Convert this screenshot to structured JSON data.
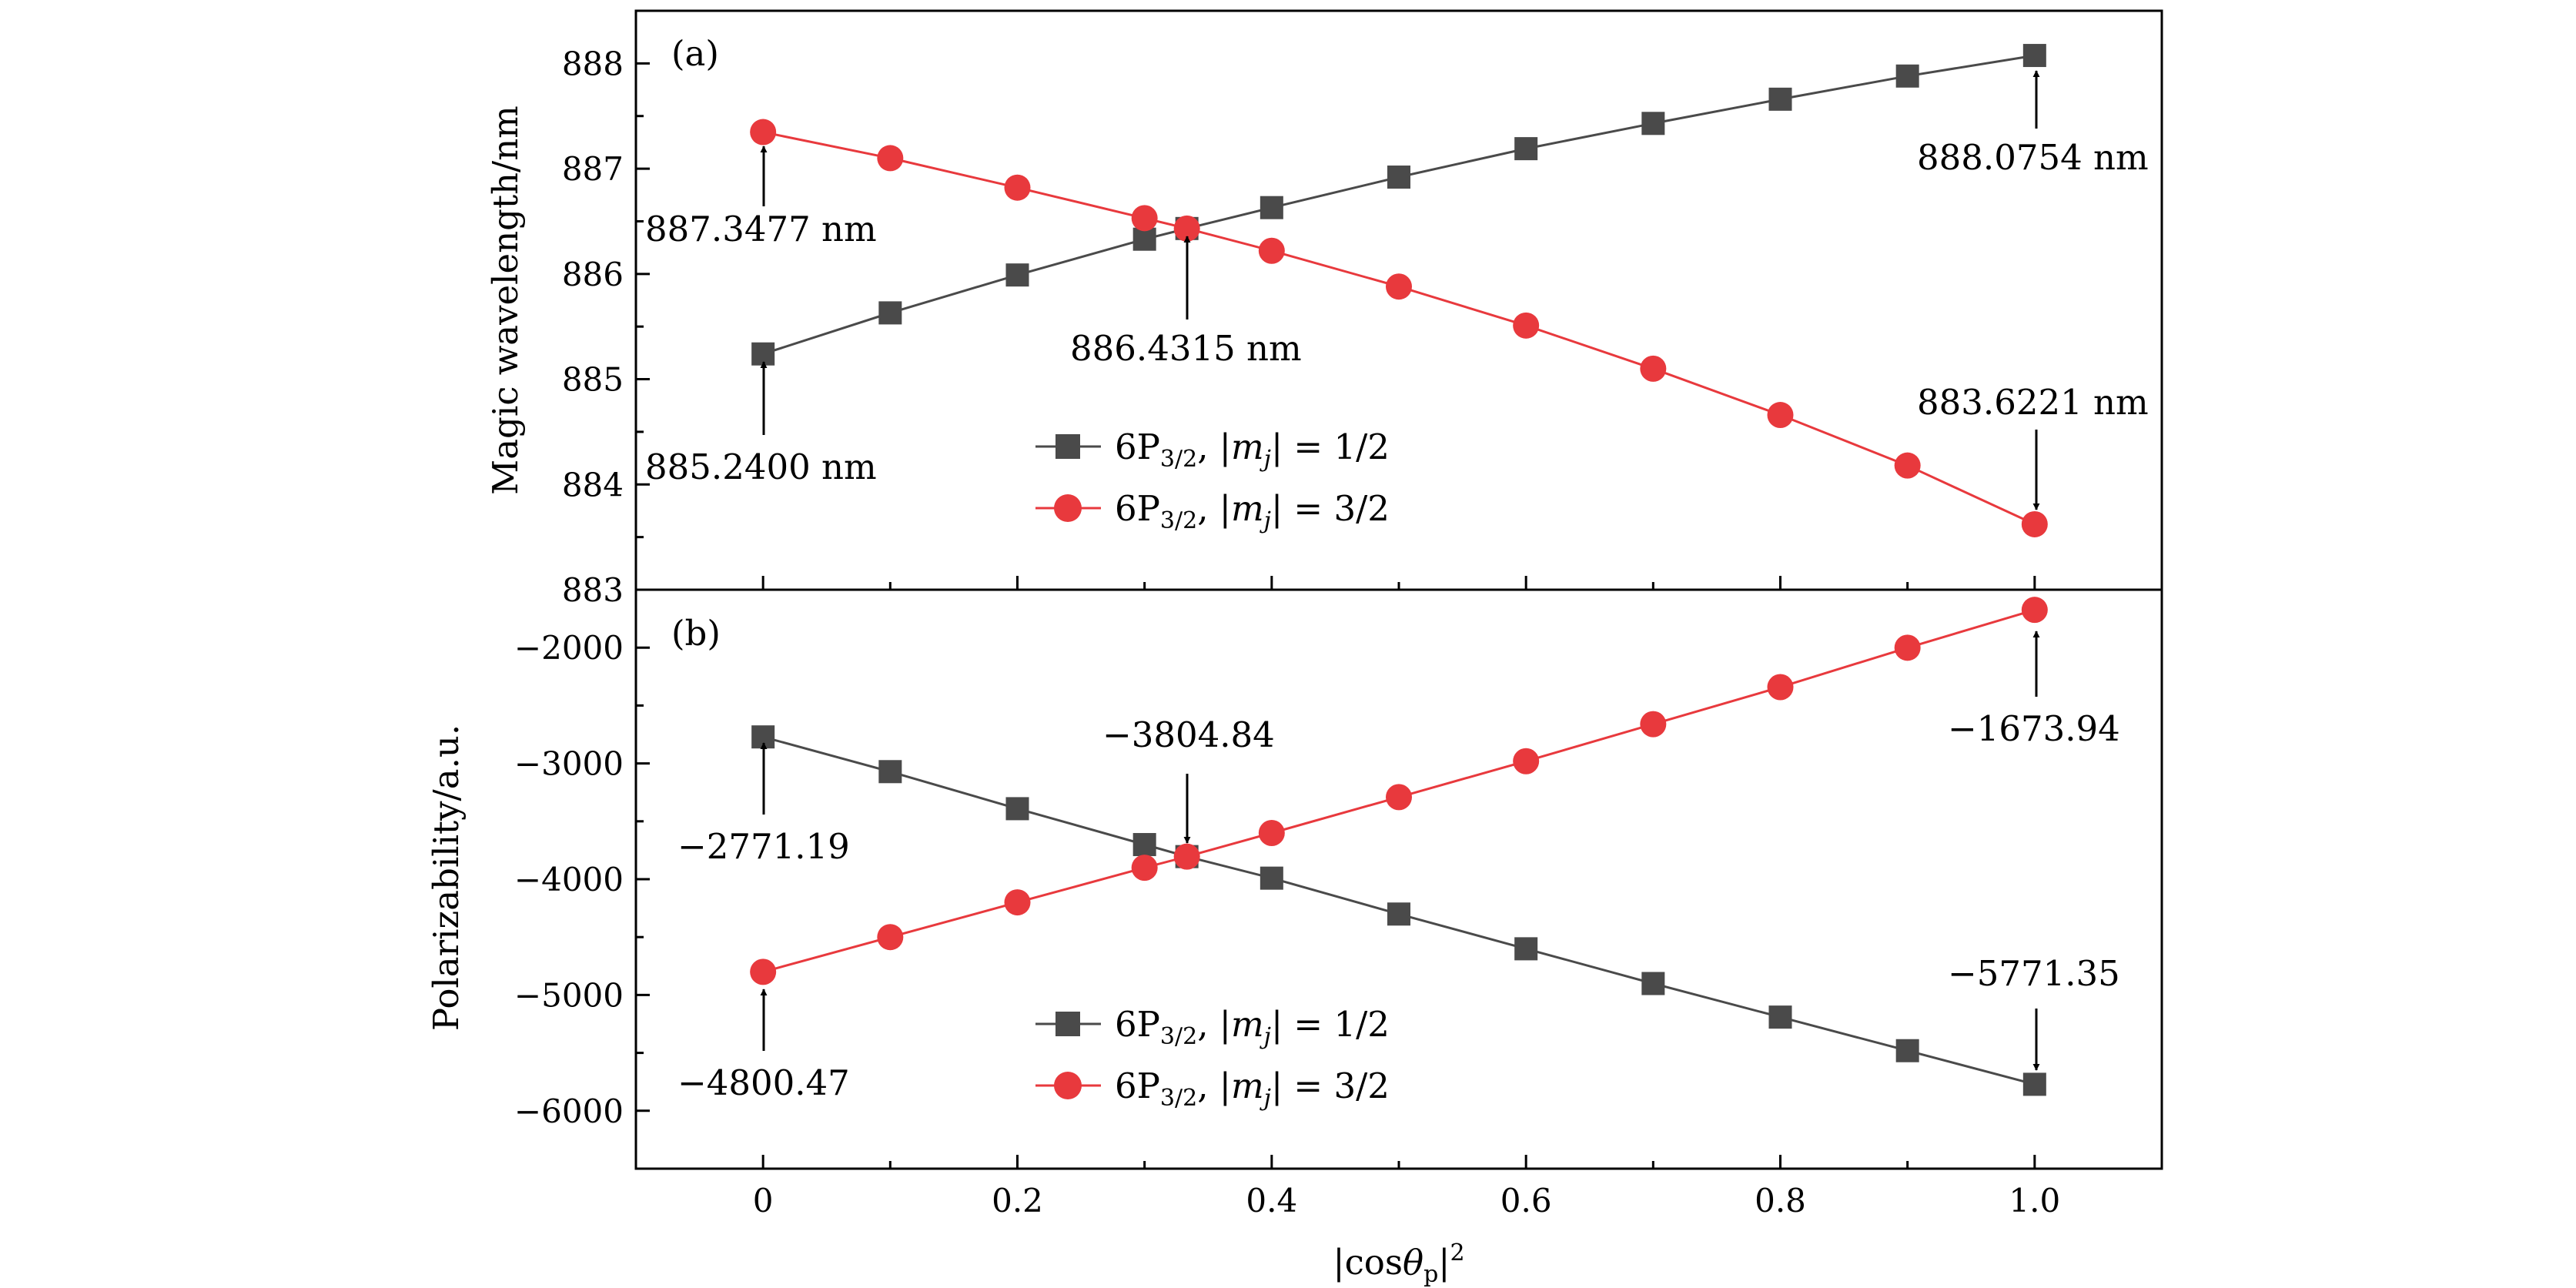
{
  "chart_data": [
    {
      "type": "line",
      "panel_label": "(a)",
      "ylabel": "Magic wavelength/nm",
      "xlim": [
        -0.1,
        1.1
      ],
      "ylim": [
        883,
        888.5
      ],
      "yticks": [
        883,
        884,
        885,
        886,
        887,
        888
      ],
      "ytick_labels": [
        "883",
        "884",
        "885",
        "886",
        "887",
        "888"
      ],
      "x": [
        0,
        0.1,
        0.2,
        0.3,
        0.3333,
        0.4,
        0.5,
        0.6,
        0.7,
        0.8,
        0.9,
        1.0
      ],
      "series": [
        {
          "name": "6P3/2, |mj| = 1/2",
          "name_parts": {
            "main": "6P",
            "sub": "3/2",
            "rest": ", |",
            "mvar": "m",
            "msub": "j",
            "tail": "| = 1/2"
          },
          "marker": "square",
          "color": "#4a4a4a",
          "values": [
            885.24,
            885.63,
            885.99,
            886.33,
            886.4315,
            886.63,
            886.92,
            887.19,
            887.43,
            887.66,
            887.88,
            888.0754
          ]
        },
        {
          "name": "6P3/2, |mj| = 3/2",
          "name_parts": {
            "main": "6P",
            "sub": "3/2",
            "rest": ", |",
            "mvar": "m",
            "msub": "j",
            "tail": "| = 3/2"
          },
          "marker": "circle",
          "color": "#e8393d",
          "values": [
            887.3477,
            887.1,
            886.82,
            886.53,
            886.4315,
            886.22,
            885.88,
            885.51,
            885.1,
            884.66,
            884.18,
            883.6221
          ]
        }
      ],
      "annotations": [
        {
          "text": "887.3477 nm",
          "x": 0,
          "y": 887.3477
        },
        {
          "text": "885.2400 nm",
          "x": 0,
          "y": 885.24
        },
        {
          "text": "886.4315 nm",
          "x": 0.3333,
          "y": 886.4315
        },
        {
          "text": "888.0754 nm",
          "x": 1.0,
          "y": 888.0754
        },
        {
          "text": "883.6221 nm",
          "x": 1.0,
          "y": 883.6221
        }
      ],
      "legend_position": "bottom-center"
    },
    {
      "type": "line",
      "panel_label": "(b)",
      "ylabel": "Polarizability/a.u.",
      "xlabel": "|cosθp|2",
      "xlabel_parts": {
        "pre": "|cos",
        "theta": "θ",
        "sub": "p",
        "post": "|",
        "sup": "2"
      },
      "xlim": [
        -0.1,
        1.1
      ],
      "ylim": [
        -6500,
        -1500
      ],
      "yticks": [
        -6000,
        -5000,
        -4000,
        -3000,
        -2000
      ],
      "ytick_labels": [
        "−6000",
        "−5000",
        "−4000",
        "−3000",
        "−2000"
      ],
      "xticks": [
        0,
        0.2,
        0.4,
        0.6,
        0.8,
        1.0
      ],
      "xtick_labels": [
        "0",
        "0.2",
        "0.4",
        "0.6",
        "0.8",
        "1.0"
      ],
      "x": [
        0,
        0.1,
        0.2,
        0.3,
        0.3333,
        0.4,
        0.5,
        0.6,
        0.7,
        0.8,
        0.9,
        1.0
      ],
      "series": [
        {
          "name": "6P3/2, |mj| = 1/2",
          "name_parts": {
            "main": "6P",
            "sub": "3/2",
            "rest": ", |",
            "mvar": "m",
            "msub": "j",
            "tail": "| = 1/2"
          },
          "marker": "square",
          "color": "#4a4a4a",
          "values": [
            -2771.19,
            -3071,
            -3391,
            -3701,
            -3804.84,
            -3991,
            -4301,
            -4601,
            -4901,
            -5191,
            -5481,
            -5771.35
          ]
        },
        {
          "name": "6P3/2, |mj| = 3/2",
          "name_parts": {
            "main": "6P",
            "sub": "3/2",
            "rest": ", |",
            "mvar": "m",
            "msub": "j",
            "tail": "| = 3/2"
          },
          "marker": "circle",
          "color": "#e8393d",
          "values": [
            -4800.47,
            -4500,
            -4200,
            -3901,
            -3804.84,
            -3601,
            -3291,
            -2981,
            -2661,
            -2341,
            -2001,
            -1673.94
          ]
        }
      ],
      "annotations": [
        {
          "text": "−2771.19",
          "x": 0,
          "y": -2771.19
        },
        {
          "text": "−4800.47",
          "x": 0,
          "y": -4800.47
        },
        {
          "text": "−3804.84",
          "x": 0.3333,
          "y": -3804.84
        },
        {
          "text": "−1673.94",
          "x": 1.0,
          "y": -1673.94
        },
        {
          "text": "−5771.35",
          "x": 1.0,
          "y": -5771.35
        }
      ],
      "legend_position": "bottom-center"
    }
  ]
}
